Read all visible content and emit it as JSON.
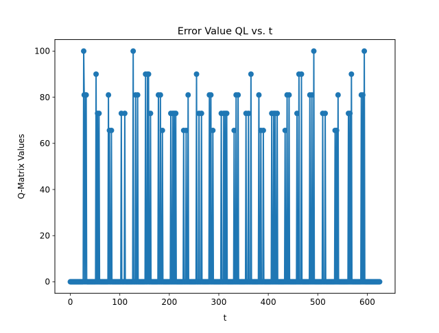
{
  "chart_data": {
    "type": "line",
    "title": "Error Value QL vs. t",
    "xlabel": "t",
    "ylabel": "Q-Matrix Values",
    "xlim": [
      -31.25,
      656.25
    ],
    "ylim": [
      -5,
      105
    ],
    "xticks": [
      0,
      100,
      200,
      300,
      400,
      500,
      600
    ],
    "yticks": [
      0,
      20,
      40,
      60,
      80,
      100
    ],
    "grid": false,
    "legend": "none",
    "series": [
      {
        "color": "#1f77b4",
        "marker": "circle",
        "x_range": [
          0,
          625
        ],
        "baseline": 0,
        "spikes": [
          {
            "x": 27,
            "y": 100
          },
          {
            "x": 28,
            "y": 81
          },
          {
            "x": 31,
            "y": 81
          },
          {
            "x": 32,
            "y": 81
          },
          {
            "x": 52,
            "y": 90
          },
          {
            "x": 55,
            "y": 73
          },
          {
            "x": 58,
            "y": 73
          },
          {
            "x": 77,
            "y": 81
          },
          {
            "x": 79,
            "y": 65.6
          },
          {
            "x": 83,
            "y": 65.6
          },
          {
            "x": 103,
            "y": 73
          },
          {
            "x": 110,
            "y": 73
          },
          {
            "x": 127,
            "y": 100
          },
          {
            "x": 132,
            "y": 81
          },
          {
            "x": 136,
            "y": 81
          },
          {
            "x": 152,
            "y": 90
          },
          {
            "x": 156,
            "y": 90
          },
          {
            "x": 158,
            "y": 90
          },
          {
            "x": 162,
            "y": 73
          },
          {
            "x": 178,
            "y": 81
          },
          {
            "x": 182,
            "y": 81
          },
          {
            "x": 186,
            "y": 65.6
          },
          {
            "x": 203,
            "y": 73
          },
          {
            "x": 207,
            "y": 73
          },
          {
            "x": 210,
            "y": 73
          },
          {
            "x": 213,
            "y": 73
          },
          {
            "x": 229,
            "y": 65.6
          },
          {
            "x": 234,
            "y": 65.6
          },
          {
            "x": 238,
            "y": 81
          },
          {
            "x": 255,
            "y": 90
          },
          {
            "x": 260,
            "y": 73
          },
          {
            "x": 265,
            "y": 73
          },
          {
            "x": 281,
            "y": 81
          },
          {
            "x": 284,
            "y": 81
          },
          {
            "x": 288,
            "y": 65.6
          },
          {
            "x": 305,
            "y": 73
          },
          {
            "x": 310,
            "y": 73
          },
          {
            "x": 313,
            "y": 73
          },
          {
            "x": 316,
            "y": 73
          },
          {
            "x": 331,
            "y": 65.6
          },
          {
            "x": 335,
            "y": 81
          },
          {
            "x": 339,
            "y": 81
          },
          {
            "x": 355,
            "y": 73
          },
          {
            "x": 360,
            "y": 73
          },
          {
            "x": 365,
            "y": 90
          },
          {
            "x": 381,
            "y": 81
          },
          {
            "x": 385,
            "y": 65.6
          },
          {
            "x": 390,
            "y": 65.6
          },
          {
            "x": 407,
            "y": 73
          },
          {
            "x": 411,
            "y": 73
          },
          {
            "x": 414,
            "y": 73
          },
          {
            "x": 418,
            "y": 73
          },
          {
            "x": 434,
            "y": 65.6
          },
          {
            "x": 438,
            "y": 81
          },
          {
            "x": 442,
            "y": 81
          },
          {
            "x": 458,
            "y": 73
          },
          {
            "x": 462,
            "y": 90
          },
          {
            "x": 467,
            "y": 90
          },
          {
            "x": 484,
            "y": 81
          },
          {
            "x": 488,
            "y": 81
          },
          {
            "x": 492,
            "y": 100
          },
          {
            "x": 510,
            "y": 73
          },
          {
            "x": 515,
            "y": 73
          },
          {
            "x": 535,
            "y": 65.6
          },
          {
            "x": 538,
            "y": 65.6
          },
          {
            "x": 541,
            "y": 81
          },
          {
            "x": 562,
            "y": 73
          },
          {
            "x": 565,
            "y": 73
          },
          {
            "x": 568,
            "y": 90
          },
          {
            "x": 588,
            "y": 81
          },
          {
            "x": 591,
            "y": 81
          },
          {
            "x": 594,
            "y": 100
          }
        ]
      }
    ]
  }
}
